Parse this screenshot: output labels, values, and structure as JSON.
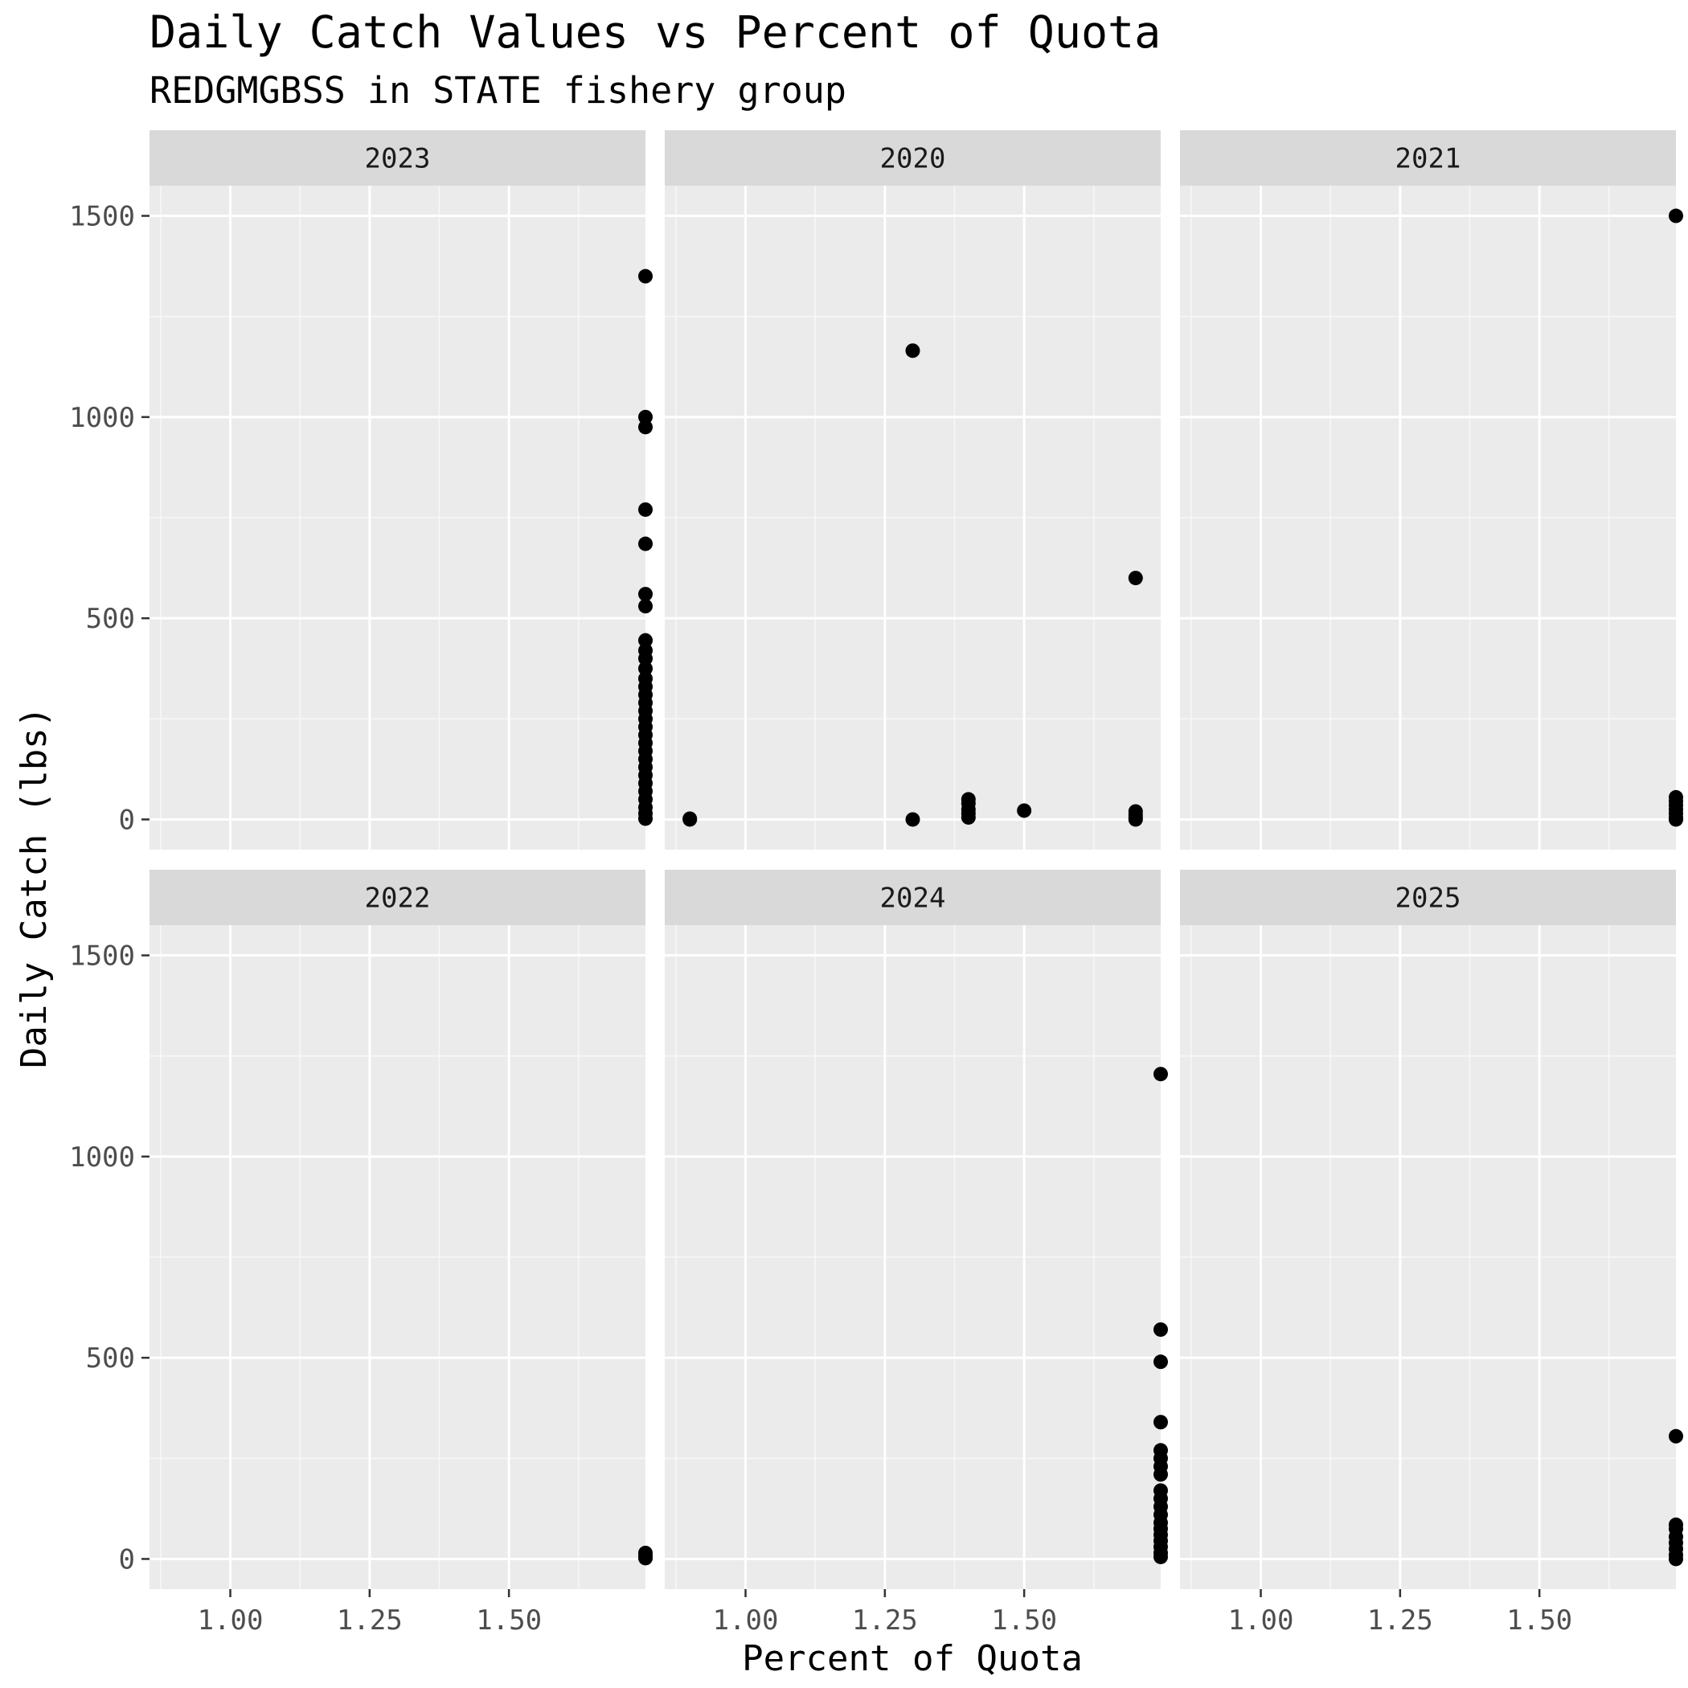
{
  "chart_data": {
    "type": "scatter",
    "title": "Daily Catch Values vs Percent of Quota",
    "subtitle": "REDGMGBSS in STATE fishery group",
    "xlabel": "Percent of Quota",
    "ylabel": "Daily Catch (lbs)",
    "xlim": [
      0.855,
      1.745
    ],
    "ylim": [
      -75,
      1575
    ],
    "x_ticks": [
      1.0,
      1.25,
      1.5
    ],
    "x_tick_labels": [
      "1.00",
      "1.25",
      "1.50"
    ],
    "y_ticks": [
      0,
      500,
      1000,
      1500
    ],
    "y_tick_labels": [
      "0",
      "500",
      "1000",
      "1500"
    ],
    "grid": true,
    "panels": [
      {
        "label": "2023",
        "points": [
          {
            "x": 1.745,
            "y": 1350
          },
          {
            "x": 1.745,
            "y": 1000
          },
          {
            "x": 1.745,
            "y": 975
          },
          {
            "x": 1.745,
            "y": 770
          },
          {
            "x": 1.745,
            "y": 685
          },
          {
            "x": 1.745,
            "y": 560
          },
          {
            "x": 1.745,
            "y": 530
          },
          {
            "x": 1.745,
            "y": 445
          },
          {
            "x": 1.745,
            "y": 420
          },
          {
            "x": 1.745,
            "y": 400
          },
          {
            "x": 1.745,
            "y": 375
          },
          {
            "x": 1.745,
            "y": 350
          },
          {
            "x": 1.745,
            "y": 330
          },
          {
            "x": 1.745,
            "y": 310
          },
          {
            "x": 1.745,
            "y": 290
          },
          {
            "x": 1.745,
            "y": 270
          },
          {
            "x": 1.745,
            "y": 250
          },
          {
            "x": 1.745,
            "y": 230
          },
          {
            "x": 1.745,
            "y": 210
          },
          {
            "x": 1.745,
            "y": 190
          },
          {
            "x": 1.745,
            "y": 170
          },
          {
            "x": 1.745,
            "y": 150
          },
          {
            "x": 1.745,
            "y": 130
          },
          {
            "x": 1.745,
            "y": 110
          },
          {
            "x": 1.745,
            "y": 90
          },
          {
            "x": 1.745,
            "y": 70
          },
          {
            "x": 1.745,
            "y": 50
          },
          {
            "x": 1.745,
            "y": 30
          },
          {
            "x": 1.745,
            "y": 15
          },
          {
            "x": 1.745,
            "y": 2
          }
        ]
      },
      {
        "label": "2020",
        "points": [
          {
            "x": 0.9,
            "y": 0
          },
          {
            "x": 0.9,
            "y": 2
          },
          {
            "x": 1.3,
            "y": 1165
          },
          {
            "x": 1.3,
            "y": 0
          },
          {
            "x": 1.4,
            "y": 50
          },
          {
            "x": 1.4,
            "y": 40
          },
          {
            "x": 1.4,
            "y": 25
          },
          {
            "x": 1.4,
            "y": 15
          },
          {
            "x": 1.4,
            "y": 5
          },
          {
            "x": 1.5,
            "y": 22
          },
          {
            "x": 1.7,
            "y": 600
          },
          {
            "x": 1.7,
            "y": 20
          },
          {
            "x": 1.7,
            "y": 12
          },
          {
            "x": 1.7,
            "y": 5
          },
          {
            "x": 1.7,
            "y": 0
          }
        ]
      },
      {
        "label": "2021",
        "points": [
          {
            "x": 1.745,
            "y": 1500
          },
          {
            "x": 1.745,
            "y": 55
          },
          {
            "x": 1.745,
            "y": 45
          },
          {
            "x": 1.745,
            "y": 35
          },
          {
            "x": 1.745,
            "y": 25
          },
          {
            "x": 1.745,
            "y": 15
          },
          {
            "x": 1.745,
            "y": 5
          },
          {
            "x": 1.745,
            "y": 0
          }
        ]
      },
      {
        "label": "2022",
        "points": [
          {
            "x": 1.745,
            "y": 15
          },
          {
            "x": 1.745,
            "y": 8
          },
          {
            "x": 1.745,
            "y": 2
          }
        ]
      },
      {
        "label": "2024",
        "points": [
          {
            "x": 1.745,
            "y": 1205
          },
          {
            "x": 1.745,
            "y": 570
          },
          {
            "x": 1.745,
            "y": 490
          },
          {
            "x": 1.745,
            "y": 340
          },
          {
            "x": 1.745,
            "y": 270
          },
          {
            "x": 1.745,
            "y": 250
          },
          {
            "x": 1.745,
            "y": 230
          },
          {
            "x": 1.745,
            "y": 210
          },
          {
            "x": 1.745,
            "y": 170
          },
          {
            "x": 1.745,
            "y": 150
          },
          {
            "x": 1.745,
            "y": 130
          },
          {
            "x": 1.745,
            "y": 110
          },
          {
            "x": 1.745,
            "y": 90
          },
          {
            "x": 1.745,
            "y": 75
          },
          {
            "x": 1.745,
            "y": 60
          },
          {
            "x": 1.745,
            "y": 45
          },
          {
            "x": 1.745,
            "y": 30
          },
          {
            "x": 1.745,
            "y": 15
          },
          {
            "x": 1.745,
            "y": 5
          }
        ]
      },
      {
        "label": "2025",
        "points": [
          {
            "x": 1.745,
            "y": 305
          },
          {
            "x": 1.745,
            "y": 85
          },
          {
            "x": 1.745,
            "y": 75
          },
          {
            "x": 1.745,
            "y": 55
          },
          {
            "x": 1.745,
            "y": 40
          },
          {
            "x": 1.745,
            "y": 25
          },
          {
            "x": 1.745,
            "y": 10
          },
          {
            "x": 1.745,
            "y": 0
          }
        ]
      }
    ]
  },
  "colors": {
    "panel_background": "#ebebeb",
    "strip_background": "#d9d9d9",
    "grid_major": "#ffffff",
    "grid_minor": "#f7f7f7",
    "point": "#000000",
    "tick_label": "#4d4d4d"
  }
}
